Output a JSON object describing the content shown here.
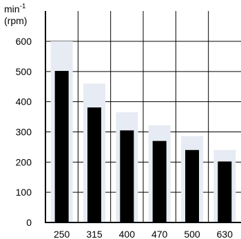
{
  "chart_data": {
    "type": "bar",
    "title": "",
    "xlabel": "",
    "ylabel": "min-1 (rpm)",
    "ylabel_lines": {
      "base": "min",
      "superscript": "-1",
      "line2": "(rpm)"
    },
    "ylim": [
      0,
      600
    ],
    "yticks": [
      "0",
      "100",
      "200",
      "300",
      "400",
      "500",
      "600"
    ],
    "grid": true,
    "categories": [
      "250",
      "315",
      "400",
      "470",
      "500",
      "630"
    ],
    "series": [
      {
        "values": [
          600,
          460,
          365,
          322,
          286,
          240
        ],
        "color": "#e7ebf3"
      },
      {
        "values": [
          502,
          381,
          305,
          270,
          240,
          202
        ],
        "color": "#000000"
      }
    ]
  }
}
